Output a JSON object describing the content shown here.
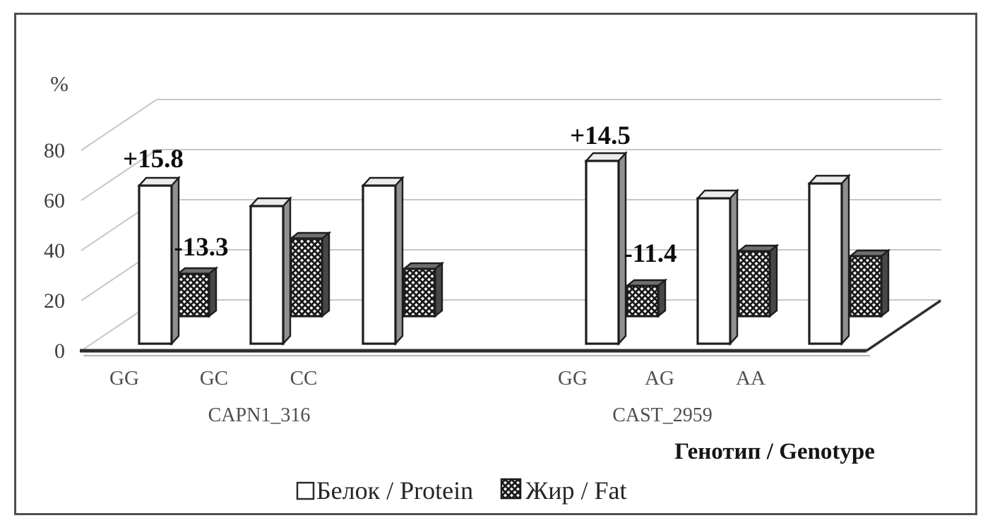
{
  "chart_data": {
    "type": "bar",
    "projection": "3d",
    "title": "",
    "ylabel": "%",
    "xlabel": "Генотип / Genotype",
    "ylim": [
      0,
      80
    ],
    "yticks": [
      0,
      20,
      40,
      60,
      80
    ],
    "grid": true,
    "legend_position": "bottom",
    "categories": [
      "GG",
      "GC",
      "CC",
      "GG",
      "AG",
      "AA"
    ],
    "group_labels": [
      "CAPN1_316",
      "CAST_2959"
    ],
    "series": [
      {
        "name": "Белок / Protein",
        "pattern": "white",
        "values": [
          63,
          55,
          63,
          73,
          58,
          64
        ]
      },
      {
        "name": "Жир / Fat",
        "pattern": "diagonal-hatch",
        "values": [
          17,
          31,
          19,
          12,
          26,
          24
        ]
      }
    ],
    "annotations": [
      {
        "text": "+15.8",
        "series": "Белок / Protein",
        "category": "GG",
        "group": "CAPN1_316"
      },
      {
        "text": "-13.3",
        "series": "Жир / Fat",
        "category": "GG",
        "group": "CAPN1_316"
      },
      {
        "text": "+14.5",
        "series": "Белок / Protein",
        "category": "GG",
        "group": "CAST_2959"
      },
      {
        "text": "-11.4",
        "series": "Жир / Fat",
        "category": "GG",
        "group": "CAST_2959"
      }
    ],
    "colors": {
      "bar_outline": "#1d1d1d",
      "protein_fill": "#ffffff",
      "fat_fill_pattern": "black-trellis-on-white",
      "gridline": "#c6c6c6",
      "axis_line": "#2e2e2e",
      "text": "#3d3d3d"
    }
  }
}
